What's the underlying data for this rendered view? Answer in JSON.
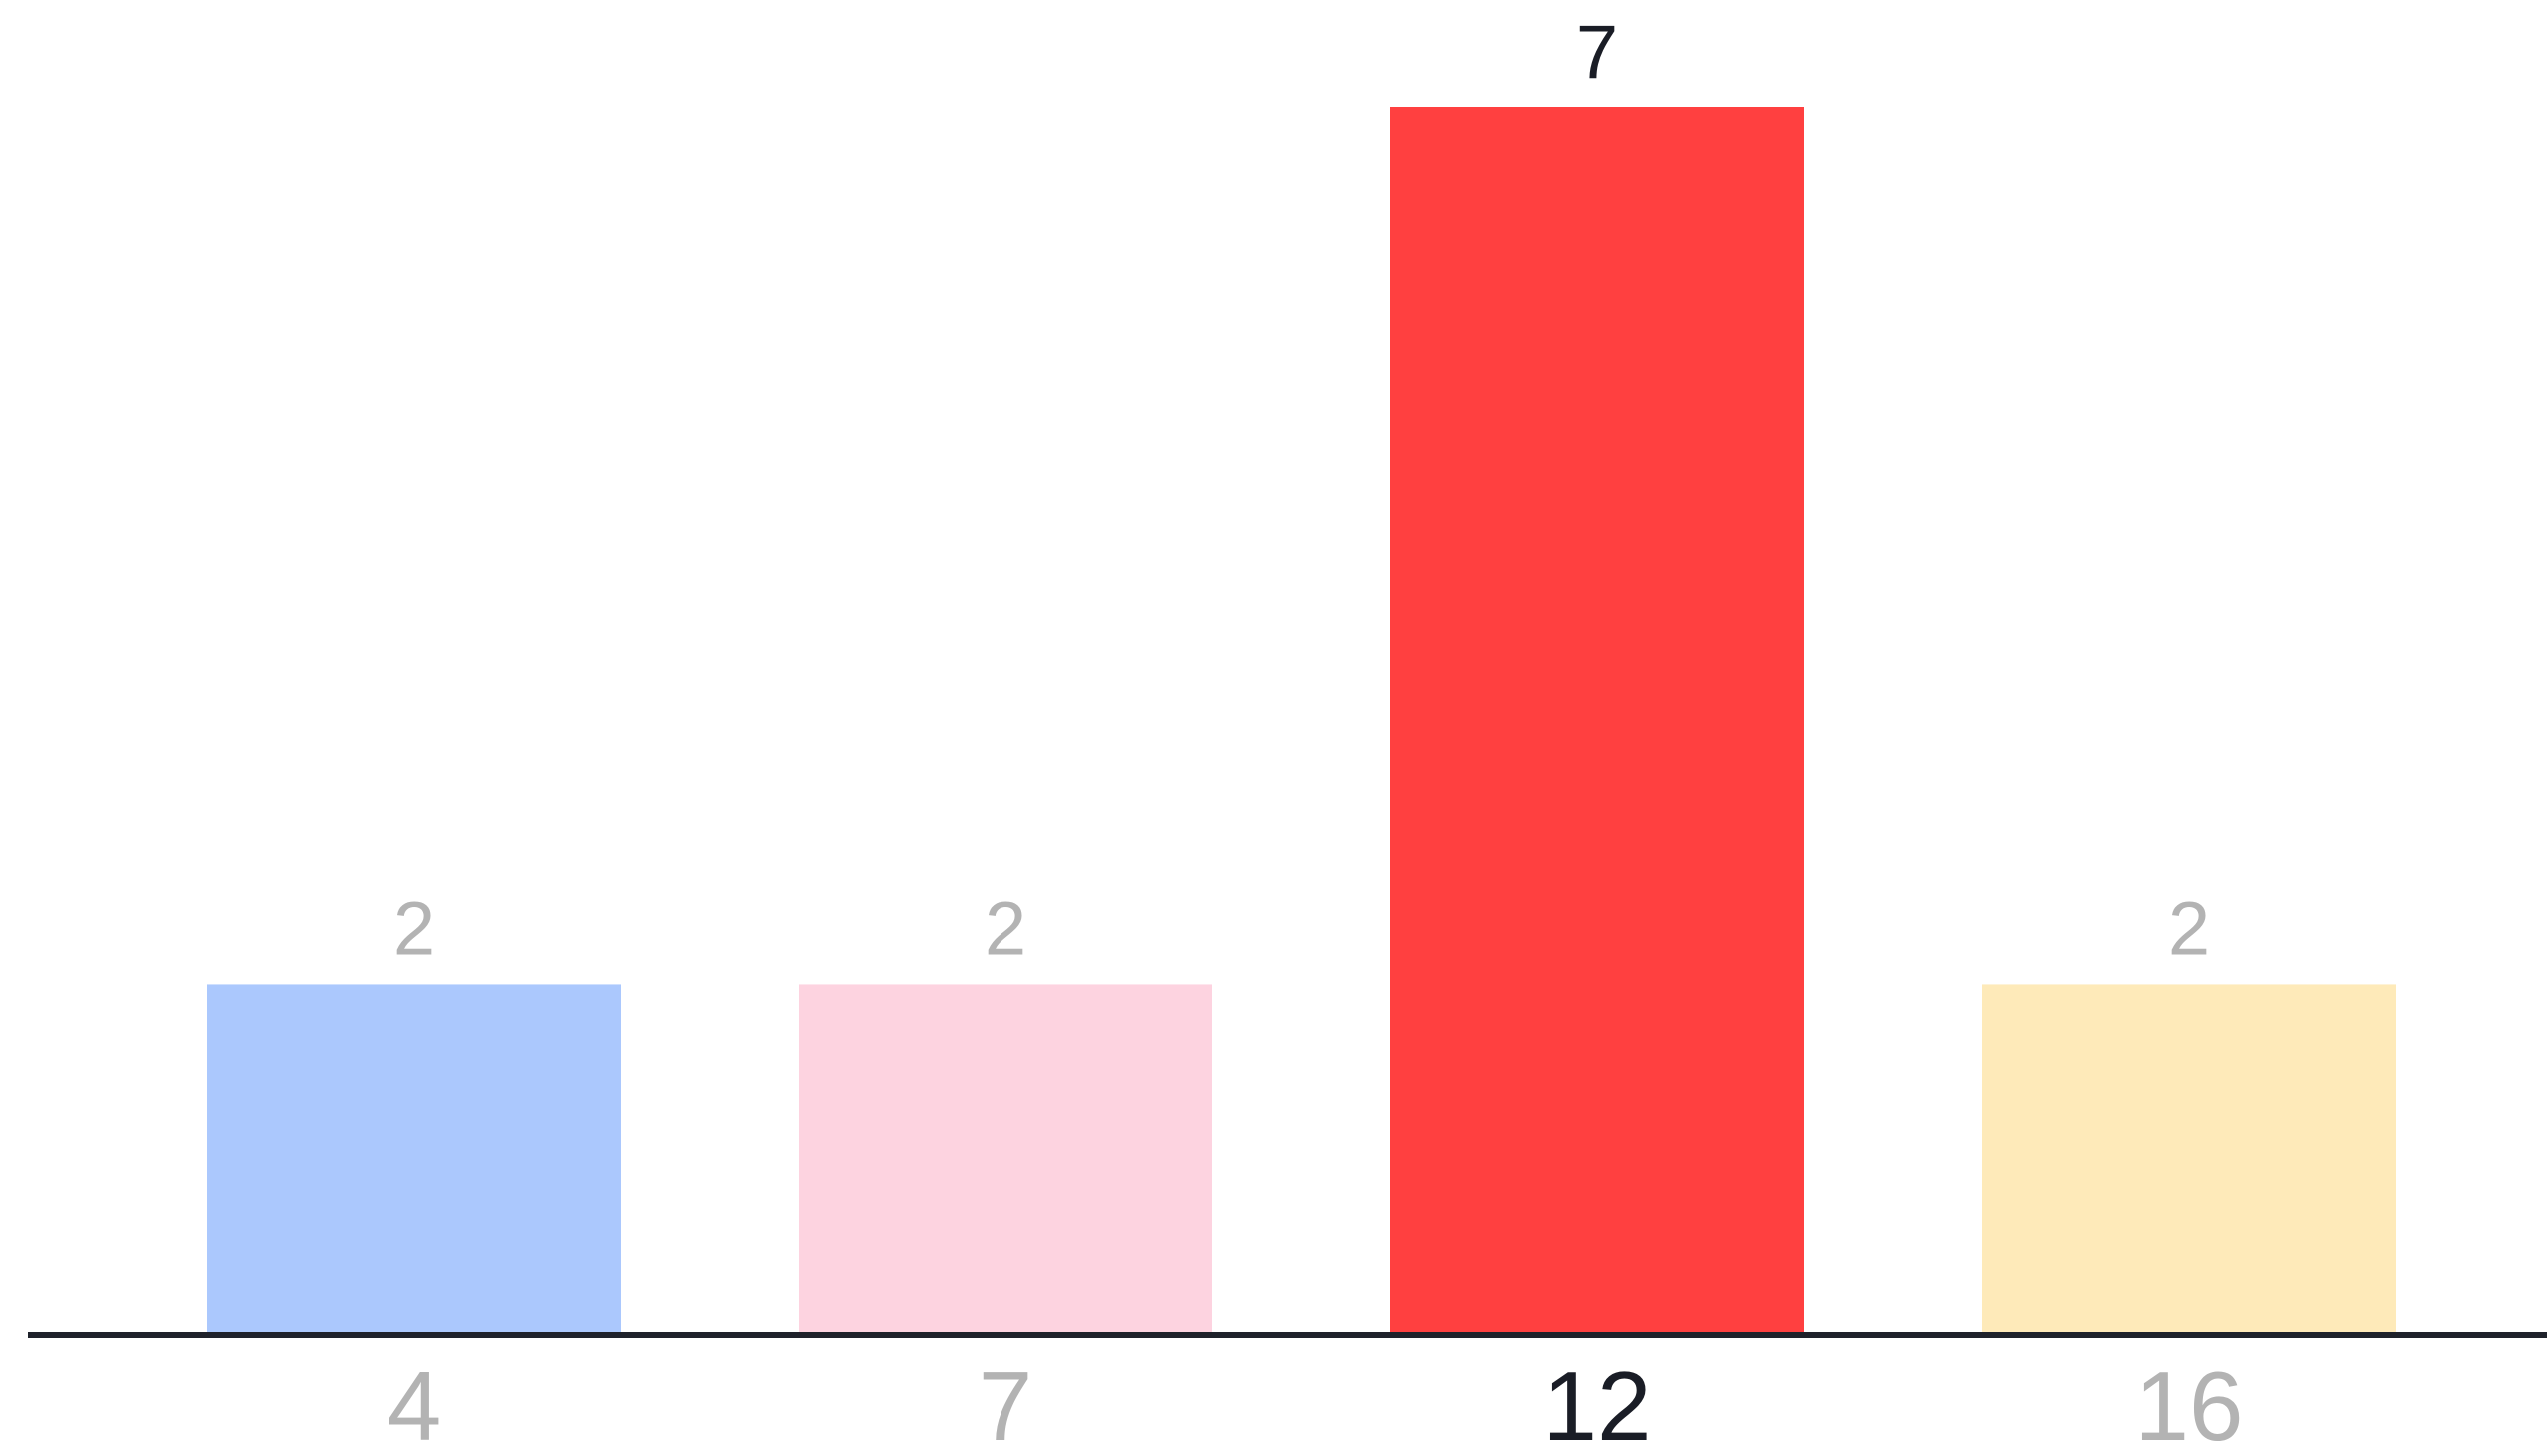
{
  "chart_data": {
    "type": "bar",
    "categories": [
      "4",
      "7",
      "12",
      "16"
    ],
    "values": [
      2,
      2,
      7,
      2
    ],
    "value_labels": [
      "2",
      "2",
      "7",
      "2"
    ],
    "title": "",
    "xlabel": "",
    "ylabel": "",
    "ylim": [
      0,
      7
    ],
    "grid": false,
    "legend": "none",
    "highlight_index": 2,
    "colors": [
      "#abc8fd",
      "#fdd3e0",
      "#ff4040",
      "#feeab9"
    ],
    "label_colors": {
      "muted": "#b3b3b3",
      "highlight": "#1a1d26"
    },
    "axis_color": "#1f222b"
  }
}
